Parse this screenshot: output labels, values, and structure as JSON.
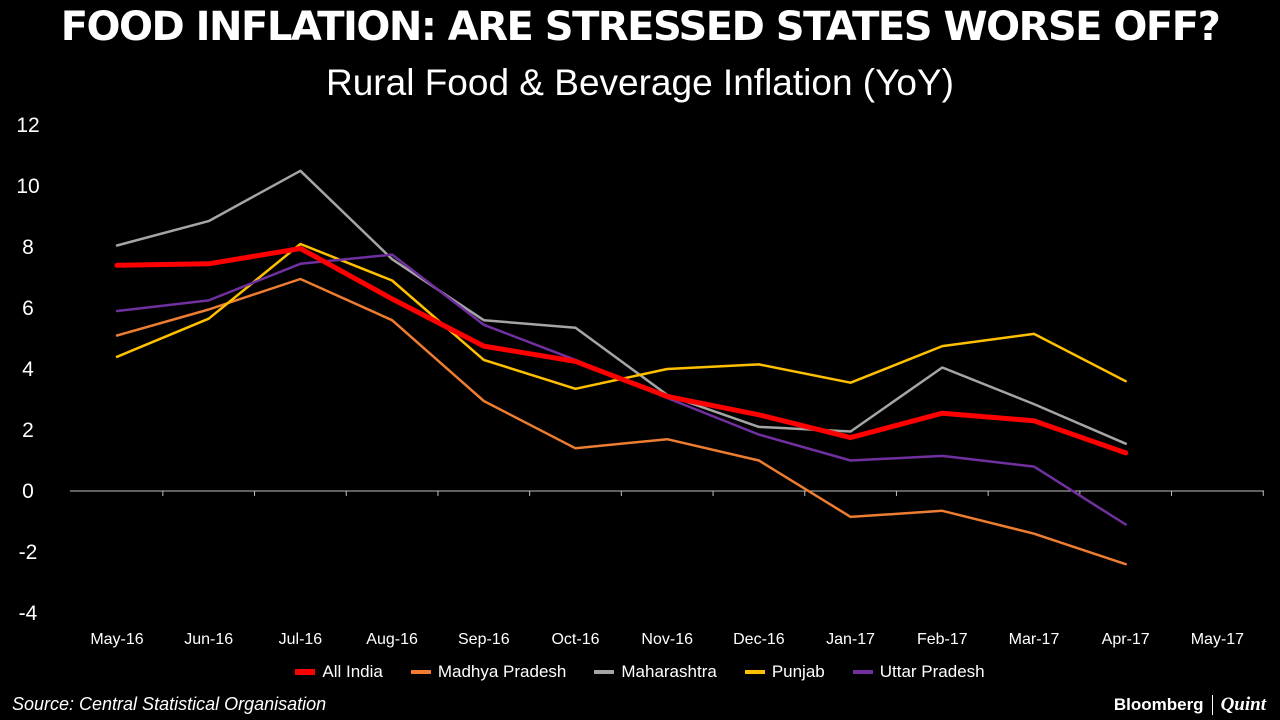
{
  "chart_data": {
    "type": "line",
    "title": "FOOD INFLATION: ARE STRESSED STATES WORSE OFF?",
    "subtitle": "Rural Food & Beverage Inflation (YoY)",
    "xlabel": "",
    "ylabel": "",
    "ylim": [
      -4,
      12
    ],
    "yticks": [
      -4,
      -2,
      0,
      2,
      4,
      6,
      8,
      10,
      12
    ],
    "grid": false,
    "legend_position": "bottom",
    "categories": [
      "May-16",
      "Jun-16",
      "Jul-16",
      "Aug-16",
      "Sep-16",
      "Oct-16",
      "Nov-16",
      "Dec-16",
      "Jan-17",
      "Feb-17",
      "Mar-17",
      "Apr-17",
      "May-17"
    ],
    "series": [
      {
        "name": "All India",
        "color": "#ff0000",
        "values": [
          7.4,
          7.45,
          7.95,
          6.3,
          4.75,
          4.25,
          3.1,
          2.5,
          1.75,
          2.55,
          2.3,
          1.25,
          null
        ]
      },
      {
        "name": "Madhya Pradesh",
        "color": "#ed7d31",
        "values": [
          5.1,
          5.95,
          6.95,
          5.6,
          2.95,
          1.4,
          1.7,
          1.0,
          -0.85,
          -0.65,
          -1.4,
          -2.4,
          null
        ]
      },
      {
        "name": "Maharashtra",
        "color": "#a5a5a5",
        "values": [
          8.05,
          8.85,
          10.5,
          7.6,
          5.6,
          5.35,
          3.15,
          2.1,
          1.95,
          4.05,
          2.85,
          1.55,
          null
        ]
      },
      {
        "name": "Punjab",
        "color": "#ffc000",
        "values": [
          4.4,
          5.65,
          8.1,
          6.9,
          4.3,
          3.35,
          4.0,
          4.15,
          3.55,
          4.75,
          5.15,
          3.6,
          null
        ]
      },
      {
        "name": "Uttar Pradesh",
        "color": "#7030a0",
        "values": [
          5.9,
          6.25,
          7.45,
          7.75,
          5.45,
          4.3,
          3.05,
          1.85,
          1.0,
          1.15,
          0.8,
          -1.1,
          null
        ]
      }
    ]
  },
  "footer": {
    "source": "Source: Central Statistical Organisation",
    "brand_a": "Bloomberg",
    "brand_b": "Quint"
  }
}
